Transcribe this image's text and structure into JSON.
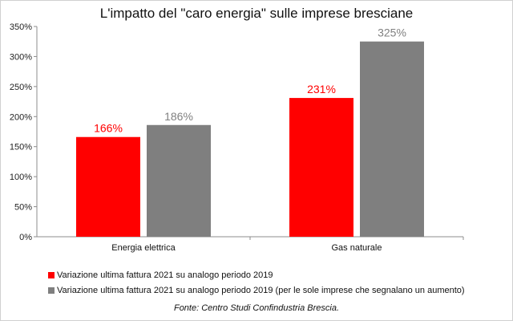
{
  "chart_data": {
    "type": "bar",
    "title": "L'impatto del \"caro energia\" sulle imprese bresciane",
    "categories": [
      "Energia elettrica",
      "Gas naturale"
    ],
    "series": [
      {
        "name": "Variazione ultima fattura 2021 su analogo periodo 2019",
        "values": [
          166,
          231
        ],
        "labels": [
          "166%",
          "231%"
        ],
        "color": "#ff0000"
      },
      {
        "name": "Variazione ultima fattura 2021 su analogo periodo 2019 (per le sole imprese che segnalano un aumento)",
        "values": [
          186,
          325
        ],
        "labels": [
          "186%",
          "325%"
        ],
        "color": "#7f7f7f"
      }
    ],
    "ylim": [
      0,
      350
    ],
    "yticks": [
      0,
      50,
      100,
      150,
      200,
      250,
      300,
      350
    ],
    "ytick_labels": [
      "0%",
      "50%",
      "100%",
      "150%",
      "200%",
      "250%",
      "300%",
      "350%"
    ],
    "grid": false,
    "legend": "bottom"
  },
  "source": "Fonte: Centro Studi Confindustria Brescia."
}
